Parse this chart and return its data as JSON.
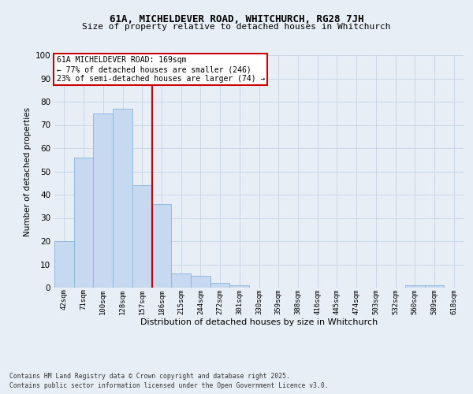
{
  "title1": "61A, MICHELDEVER ROAD, WHITCHURCH, RG28 7JH",
  "title2": "Size of property relative to detached houses in Whitchurch",
  "xlabel": "Distribution of detached houses by size in Whitchurch",
  "ylabel": "Number of detached properties",
  "bin_labels": [
    "42sqm",
    "71sqm",
    "100sqm",
    "128sqm",
    "157sqm",
    "186sqm",
    "215sqm",
    "244sqm",
    "272sqm",
    "301sqm",
    "330sqm",
    "359sqm",
    "388sqm",
    "416sqm",
    "445sqm",
    "474sqm",
    "503sqm",
    "532sqm",
    "560sqm",
    "589sqm",
    "618sqm"
  ],
  "bar_heights": [
    20,
    56,
    75,
    77,
    44,
    36,
    6,
    5,
    2,
    1,
    0,
    0,
    0,
    0,
    0,
    0,
    0,
    0,
    1,
    1,
    0
  ],
  "bar_color": "#c6d9f0",
  "bar_edge_color": "#8ab4d8",
  "grid_color": "#c8d8e8",
  "vline_color": "#cc0000",
  "annotation_title": "61A MICHELDEVER ROAD: 169sqm",
  "annotation_line1": "← 77% of detached houses are smaller (246)",
  "annotation_line2": "23% of semi-detached houses are larger (74) →",
  "annotation_box_color": "#cc0000",
  "ylim": [
    0,
    100
  ],
  "yticks": [
    0,
    10,
    20,
    30,
    40,
    50,
    60,
    70,
    80,
    90,
    100
  ],
  "footer1": "Contains HM Land Registry data © Crown copyright and database right 2025.",
  "footer2": "Contains public sector information licensed under the Open Government Licence v3.0.",
  "bg_color": "#e8eef5",
  "plot_bg_color": "#e8eef5"
}
